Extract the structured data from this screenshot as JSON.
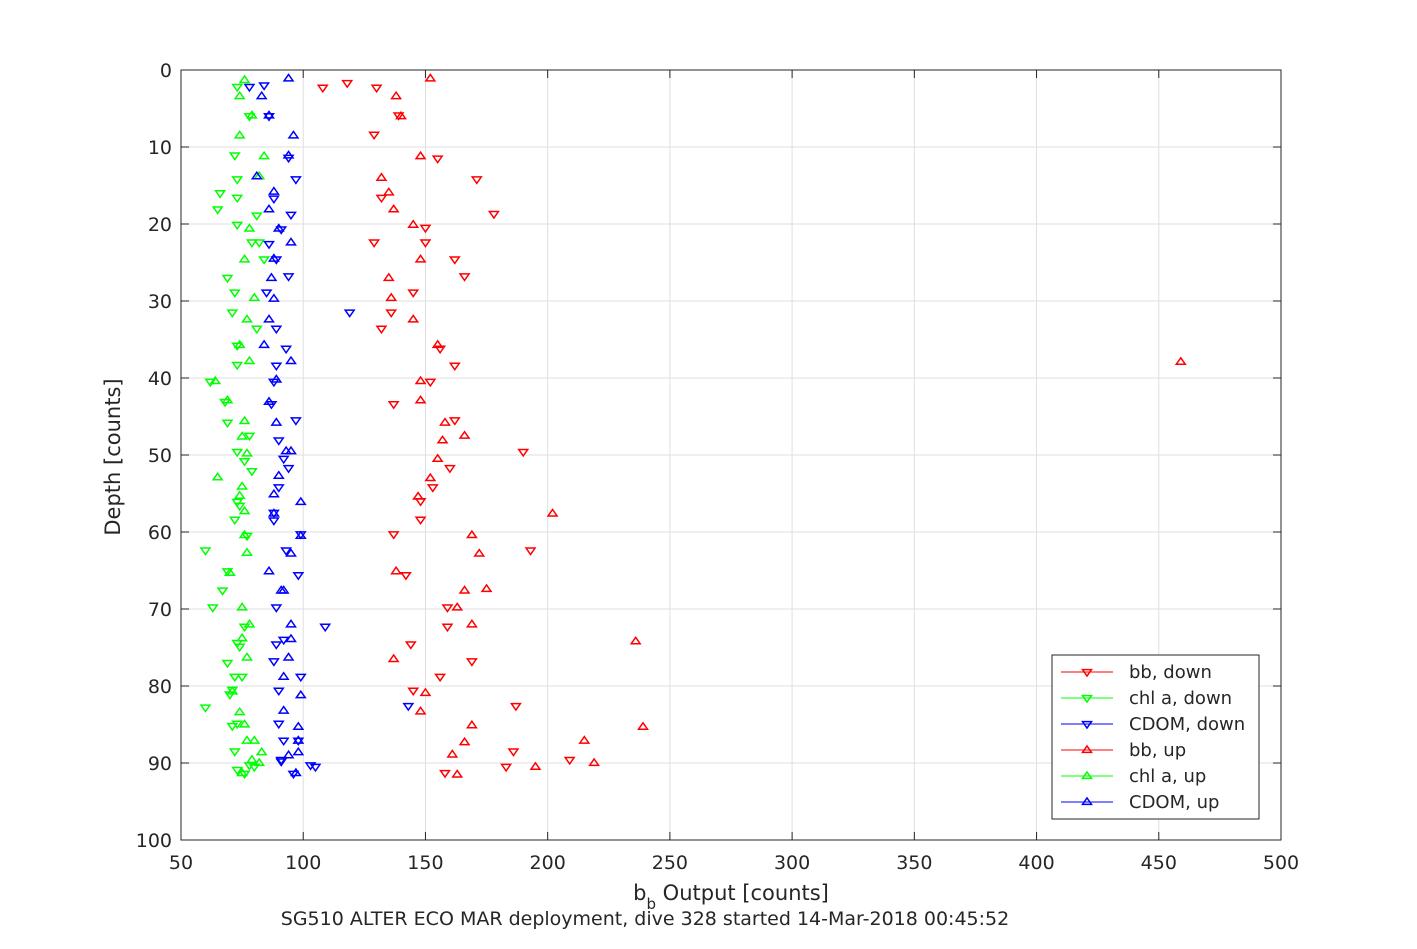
{
  "chart_data": {
    "type": "scatter",
    "xlabel_main": "b",
    "xlabel_sub": "b",
    "xlabel_rest": " Output [counts]",
    "ylabel": "Depth [counts]",
    "footer": "SG510 ALTER ECO MAR deployment, dive 328 started 14-Mar-2018 00:45:52",
    "xlim": [
      50,
      500
    ],
    "ylim": [
      0,
      100
    ],
    "y_reversed": true,
    "grid": true,
    "legend_placement": "bottom-right",
    "x_ticks": [
      "50",
      "100",
      "150",
      "200",
      "250",
      "300",
      "350",
      "400",
      "450",
      "500"
    ],
    "y_ticks": [
      "0",
      "10",
      "20",
      "30",
      "40",
      "50",
      "60",
      "70",
      "80",
      "90",
      "100"
    ],
    "series": [
      {
        "name": "bb, down",
        "marker": "triangle-down",
        "color": "#ff0000",
        "points": [
          [
            108,
            2.3
          ],
          [
            118,
            1.7
          ],
          [
            130,
            2.3
          ],
          [
            139,
            5.9
          ],
          [
            129,
            8.4
          ],
          [
            155,
            11.5
          ],
          [
            171,
            14.2
          ],
          [
            132,
            16.6
          ],
          [
            178,
            18.7
          ],
          [
            150,
            20.5
          ],
          [
            129,
            22.4
          ],
          [
            150,
            22.4
          ],
          [
            162,
            24.6
          ],
          [
            166,
            26.8
          ],
          [
            145,
            28.9
          ],
          [
            136,
            31.5
          ],
          [
            132,
            33.6
          ],
          [
            156,
            36.2
          ],
          [
            162,
            38.4
          ],
          [
            152,
            40.5
          ],
          [
            137,
            43.4
          ],
          [
            162,
            45.5
          ],
          [
            190,
            49.6
          ],
          [
            160,
            51.7
          ],
          [
            153,
            54.2
          ],
          [
            148,
            56.0
          ],
          [
            148,
            58.4
          ],
          [
            137,
            60.3
          ],
          [
            193,
            62.4
          ],
          [
            142,
            65.6
          ],
          [
            159,
            69.8
          ],
          [
            159,
            72.3
          ],
          [
            144,
            74.6
          ],
          [
            169,
            76.8
          ],
          [
            156,
            78.8
          ],
          [
            145,
            80.6
          ],
          [
            187,
            82.6
          ],
          [
            186,
            88.5
          ],
          [
            209,
            89.6
          ],
          [
            183,
            90.5
          ],
          [
            158,
            91.3
          ]
        ]
      },
      {
        "name": "chl a, down",
        "marker": "triangle-down",
        "color": "#00ff00",
        "points": [
          [
            73,
            2.2
          ],
          [
            78,
            6.0
          ],
          [
            72,
            11.1
          ],
          [
            73,
            14.2
          ],
          [
            66,
            16.0
          ],
          [
            73,
            16.6
          ],
          [
            65,
            18.1
          ],
          [
            81,
            18.9
          ],
          [
            73,
            20.1
          ],
          [
            79,
            22.4
          ],
          [
            82,
            22.4
          ],
          [
            84,
            24.6
          ],
          [
            69,
            27.0
          ],
          [
            72,
            28.9
          ],
          [
            71,
            31.5
          ],
          [
            81,
            33.6
          ],
          [
            73,
            35.8
          ],
          [
            73,
            38.3
          ],
          [
            62,
            40.5
          ],
          [
            68,
            43.1
          ],
          [
            69,
            45.8
          ],
          [
            78,
            47.5
          ],
          [
            73,
            49.6
          ],
          [
            76,
            50.8
          ],
          [
            79,
            52.1
          ],
          [
            73,
            56.1
          ],
          [
            74,
            56.6
          ],
          [
            72,
            58.4
          ],
          [
            77,
            60.5
          ],
          [
            60,
            62.4
          ],
          [
            69,
            65.1
          ],
          [
            67,
            67.6
          ],
          [
            63,
            69.8
          ],
          [
            76,
            72.3
          ],
          [
            73,
            74.4
          ],
          [
            74,
            74.9
          ],
          [
            69,
            77.0
          ],
          [
            72,
            78.8
          ],
          [
            75,
            78.8
          ],
          [
            71,
            80.5
          ],
          [
            70,
            81.1
          ],
          [
            60,
            82.8
          ],
          [
            73,
            84.9
          ],
          [
            71,
            85.2
          ],
          [
            72,
            88.5
          ],
          [
            78,
            90.3
          ],
          [
            73,
            90.9
          ],
          [
            80,
            90.5
          ],
          [
            76,
            91.4
          ]
        ]
      },
      {
        "name": "CDOM, down",
        "marker": "triangle-down",
        "color": "#0000ff",
        "points": [
          [
            78,
            2.2
          ],
          [
            84,
            2.0
          ],
          [
            86,
            6.0
          ],
          [
            94,
            11.4
          ],
          [
            97,
            14.2
          ],
          [
            88,
            16.7
          ],
          [
            95,
            18.8
          ],
          [
            91,
            20.7
          ],
          [
            86,
            22.6
          ],
          [
            89,
            24.6
          ],
          [
            94,
            26.8
          ],
          [
            85,
            28.9
          ],
          [
            119,
            31.5
          ],
          [
            89,
            33.6
          ],
          [
            93,
            36.2
          ],
          [
            89,
            38.4
          ],
          [
            88,
            40.5
          ],
          [
            87,
            43.4
          ],
          [
            97,
            45.5
          ],
          [
            90,
            48.1
          ],
          [
            92,
            50.5
          ],
          [
            94,
            51.7
          ],
          [
            90,
            54.2
          ],
          [
            88,
            57.5
          ],
          [
            88,
            58.5
          ],
          [
            99,
            60.3
          ],
          [
            93,
            62.4
          ],
          [
            98,
            65.6
          ],
          [
            89,
            69.8
          ],
          [
            109,
            72.3
          ],
          [
            89,
            74.6
          ],
          [
            92,
            74.0
          ],
          [
            88,
            76.8
          ],
          [
            99,
            78.8
          ],
          [
            90,
            80.6
          ],
          [
            143,
            82.6
          ],
          [
            90,
            84.9
          ],
          [
            92,
            87.1
          ],
          [
            98,
            87.1
          ],
          [
            91,
            89.6
          ],
          [
            103,
            90.3
          ],
          [
            105,
            90.5
          ],
          [
            96,
            91.4
          ],
          [
            91,
            89.8
          ]
        ]
      },
      {
        "name": "bb, up",
        "marker": "triangle-up",
        "color": "#ff0000",
        "points": [
          [
            152,
            1.1
          ],
          [
            138,
            3.4
          ],
          [
            140,
            6.0
          ],
          [
            148,
            11.2
          ],
          [
            132,
            14.0
          ],
          [
            135,
            15.9
          ],
          [
            137,
            18.1
          ],
          [
            145,
            20.1
          ],
          [
            148,
            24.6
          ],
          [
            135,
            27.0
          ],
          [
            136,
            29.6
          ],
          [
            145,
            32.4
          ],
          [
            155,
            35.7
          ],
          [
            459,
            37.9
          ],
          [
            148,
            40.4
          ],
          [
            148,
            42.9
          ],
          [
            158,
            45.8
          ],
          [
            166,
            47.5
          ],
          [
            157,
            48.1
          ],
          [
            155,
            50.5
          ],
          [
            152,
            53.0
          ],
          [
            147,
            55.4
          ],
          [
            202,
            57.6
          ],
          [
            169,
            60.4
          ],
          [
            172,
            62.8
          ],
          [
            138,
            65.1
          ],
          [
            166,
            67.6
          ],
          [
            175,
            67.4
          ],
          [
            163,
            69.8
          ],
          [
            169,
            72.0
          ],
          [
            236,
            74.2
          ],
          [
            137,
            76.5
          ],
          [
            150,
            80.9
          ],
          [
            148,
            83.3
          ],
          [
            169,
            85.1
          ],
          [
            239,
            85.3
          ],
          [
            215,
            87.1
          ],
          [
            166,
            87.3
          ],
          [
            161,
            88.9
          ],
          [
            219,
            90.0
          ],
          [
            195,
            90.5
          ],
          [
            163,
            91.5
          ]
        ]
      },
      {
        "name": "chl a, up",
        "marker": "triangle-up",
        "color": "#00ff00",
        "points": [
          [
            76,
            1.3
          ],
          [
            74,
            3.4
          ],
          [
            79,
            5.9
          ],
          [
            74,
            8.5
          ],
          [
            84,
            11.2
          ],
          [
            82,
            13.8
          ],
          [
            78,
            20.6
          ],
          [
            76,
            24.6
          ],
          [
            80,
            29.6
          ],
          [
            77,
            32.4
          ],
          [
            74,
            35.7
          ],
          [
            78,
            37.8
          ],
          [
            64,
            40.4
          ],
          [
            69,
            42.9
          ],
          [
            76,
            45.6
          ],
          [
            75,
            47.6
          ],
          [
            77,
            49.8
          ],
          [
            65,
            52.9
          ],
          [
            75,
            54.1
          ],
          [
            74,
            55.3
          ],
          [
            76,
            57.3
          ],
          [
            76,
            60.4
          ],
          [
            77,
            62.7
          ],
          [
            70,
            65.3
          ],
          [
            75,
            69.8
          ],
          [
            78,
            72.0
          ],
          [
            75,
            73.8
          ],
          [
            77,
            76.3
          ],
          [
            71,
            80.7
          ],
          [
            74,
            83.4
          ],
          [
            76,
            85.0
          ],
          [
            77,
            87.1
          ],
          [
            80,
            87.1
          ],
          [
            83,
            88.6
          ],
          [
            79,
            89.6
          ],
          [
            82,
            90.0
          ],
          [
            75,
            91.3
          ]
        ]
      },
      {
        "name": "CDOM, up",
        "marker": "triangle-up",
        "color": "#0000ff",
        "points": [
          [
            94,
            1.1
          ],
          [
            83,
            3.4
          ],
          [
            86,
            5.9
          ],
          [
            96,
            8.5
          ],
          [
            94,
            11.1
          ],
          [
            81,
            13.8
          ],
          [
            88,
            15.8
          ],
          [
            86,
            18.1
          ],
          [
            90,
            20.6
          ],
          [
            95,
            22.4
          ],
          [
            88,
            24.5
          ],
          [
            87,
            27.0
          ],
          [
            88,
            29.7
          ],
          [
            86,
            32.4
          ],
          [
            84,
            35.7
          ],
          [
            95,
            37.8
          ],
          [
            89,
            40.2
          ],
          [
            86,
            43.1
          ],
          [
            89,
            45.8
          ],
          [
            93,
            49.5
          ],
          [
            95,
            49.5
          ],
          [
            90,
            52.7
          ],
          [
            88,
            55.1
          ],
          [
            99,
            56.1
          ],
          [
            88,
            57.6
          ],
          [
            99,
            60.5
          ],
          [
            95,
            62.8
          ],
          [
            86,
            65.1
          ],
          [
            91,
            67.6
          ],
          [
            92,
            67.6
          ],
          [
            95,
            72.0
          ],
          [
            95,
            73.9
          ],
          [
            94,
            76.3
          ],
          [
            92,
            78.8
          ],
          [
            99,
            81.2
          ],
          [
            92,
            83.2
          ],
          [
            98,
            85.3
          ],
          [
            98,
            87.1
          ],
          [
            98,
            88.6
          ],
          [
            94,
            89.0
          ],
          [
            97,
            91.3
          ]
        ]
      }
    ]
  }
}
